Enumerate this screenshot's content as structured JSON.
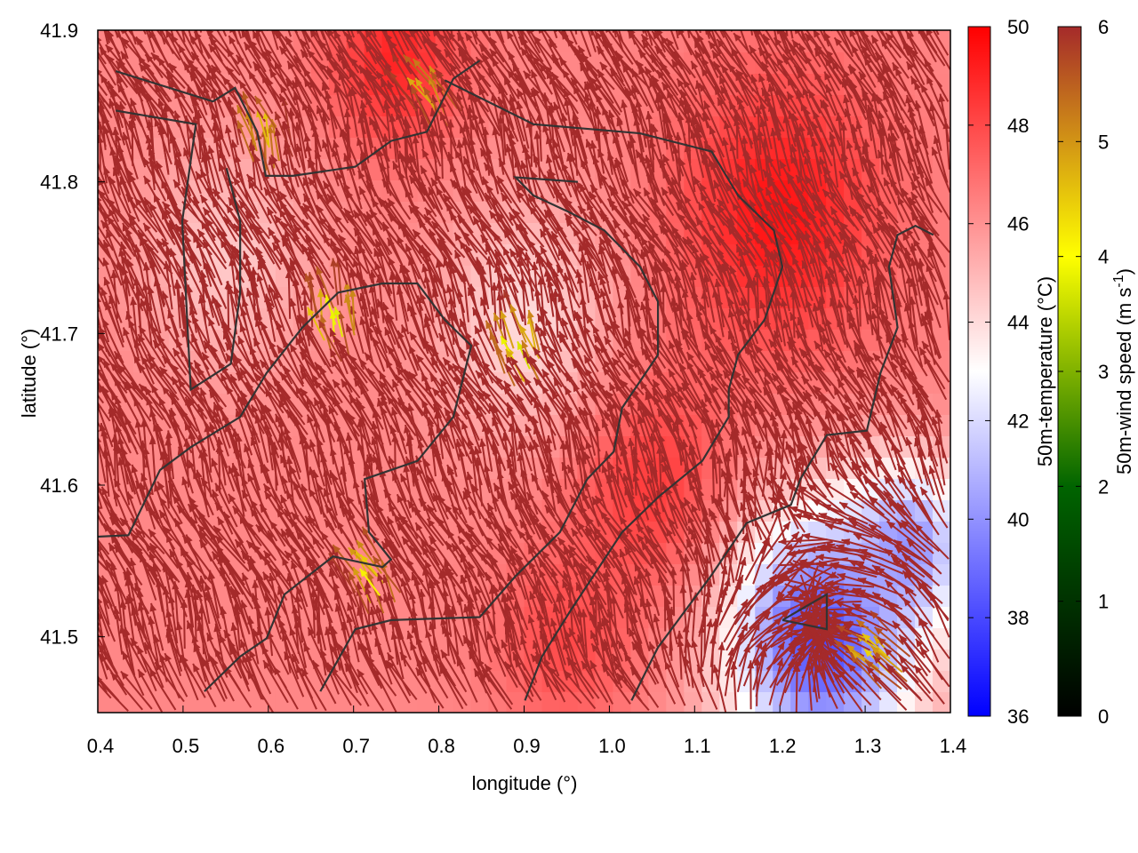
{
  "chart_data": {
    "type": "vector",
    "title": "",
    "xlabel": "longitude (°)",
    "ylabel": "latitude (°)",
    "xlim": [
      0.4,
      1.4
    ],
    "ylim": [
      41.45,
      41.9
    ],
    "xticks": [
      "0.4",
      "0.5",
      "0.6",
      "0.7",
      "0.8",
      "0.9",
      "1.0",
      "1.1",
      "1.2",
      "1.3",
      "1.4"
    ],
    "yticks": [
      "41.5",
      "41.6",
      "41.7",
      "41.8",
      "41.9"
    ],
    "colorbars": [
      {
        "label": "50m-temperature (°C)",
        "range": [
          36,
          50
        ],
        "ticks": [
          "36",
          "38",
          "40",
          "42",
          "44",
          "46",
          "48",
          "50"
        ],
        "colors": [
          "#0000ff",
          "#ffffff",
          "#ff0000"
        ]
      },
      {
        "label": "50m-wind speed (m s",
        "label_sup": "-1",
        "label_end": ")",
        "range": [
          0,
          6
        ],
        "ticks": [
          "0",
          "1",
          "2",
          "3",
          "4",
          "5",
          "6"
        ],
        "colors": [
          "#000000",
          "#006400",
          "#ffff00",
          "#a52a2a"
        ]
      }
    ],
    "temperature_background": 46.3,
    "temperature_features": [
      {
        "lon": 1.2,
        "lat": 41.78,
        "temp": 49.5,
        "radius": 0.12
      },
      {
        "lon": 1.05,
        "lat": 41.6,
        "temp": 48.5,
        "radius": 0.1
      },
      {
        "lon": 0.75,
        "lat": 41.88,
        "temp": 49,
        "radius": 0.08
      },
      {
        "lon": 0.95,
        "lat": 41.5,
        "temp": 48,
        "radius": 0.08
      },
      {
        "lon": 1.25,
        "lat": 41.5,
        "temp": 38,
        "radius": 0.11
      },
      {
        "lon": 1.35,
        "lat": 41.56,
        "temp": 40,
        "radius": 0.07
      },
      {
        "lon": 0.9,
        "lat": 41.71,
        "temp": 44,
        "radius": 0.1
      },
      {
        "lon": 0.55,
        "lat": 41.75,
        "temp": 44.5,
        "radius": 0.1
      }
    ],
    "wind": {
      "prevailing_u": -0.45,
      "prevailing_v": 1.0,
      "max_speed": 6,
      "divergence_center": {
        "lon": 1.25,
        "lat": 41.5
      },
      "low_speed_spots": [
        {
          "lon": 0.68,
          "lat": 41.7,
          "speed": 3.0
        },
        {
          "lon": 0.9,
          "lat": 41.68,
          "speed": 2.8
        },
        {
          "lon": 0.73,
          "lat": 41.53,
          "speed": 3.8
        },
        {
          "lon": 0.6,
          "lat": 41.82,
          "speed": 4.3
        },
        {
          "lon": 0.8,
          "lat": 41.85,
          "speed": 4.5
        },
        {
          "lon": 1.33,
          "lat": 41.48,
          "speed": 4.0
        }
      ]
    },
    "contours": [
      [
        [
          0.4,
          41.566
        ],
        [
          0.436,
          41.567
        ],
        [
          0.473,
          41.61
        ],
        [
          0.509,
          41.625
        ],
        [
          0.567,
          41.645
        ],
        [
          0.598,
          41.674
        ],
        [
          0.64,
          41.704
        ],
        [
          0.682,
          41.727
        ],
        [
          0.734,
          41.733
        ],
        [
          0.775,
          41.733
        ],
        [
          0.807,
          41.709
        ],
        [
          0.838,
          41.692
        ],
        [
          0.817,
          41.645
        ],
        [
          0.775,
          41.616
        ],
        [
          0.713,
          41.604
        ],
        [
          0.718,
          41.569
        ],
        [
          0.744,
          41.551
        ],
        [
          0.734,
          41.546
        ],
        [
          0.676,
          41.553
        ],
        [
          0.619,
          41.528
        ],
        [
          0.598,
          41.499
        ],
        [
          0.567,
          41.487
        ],
        [
          0.525,
          41.464
        ]
      ],
      [
        [
          0.421,
          41.873
        ],
        [
          0.535,
          41.853
        ],
        [
          0.561,
          41.862
        ],
        [
          0.587,
          41.833
        ],
        [
          0.597,
          41.804
        ],
        [
          0.629,
          41.804
        ],
        [
          0.702,
          41.81
        ],
        [
          0.744,
          41.827
        ],
        [
          0.786,
          41.833
        ],
        [
          0.817,
          41.868
        ],
        [
          0.848,
          41.88
        ]
      ],
      [
        [
          0.421,
          41.847
        ],
        [
          0.515,
          41.838
        ],
        [
          0.499,
          41.774
        ],
        [
          0.509,
          41.663
        ],
        [
          0.556,
          41.68
        ],
        [
          0.567,
          41.727
        ],
        [
          0.567,
          41.774
        ],
        [
          0.551,
          41.809
        ]
      ],
      [
        [
          0.661,
          41.464
        ],
        [
          0.702,
          41.505
        ],
        [
          0.744,
          41.511
        ],
        [
          0.848,
          41.513
        ],
        [
          0.89,
          41.54
        ],
        [
          0.942,
          41.569
        ],
        [
          0.974,
          41.604
        ],
        [
          1.005,
          41.622
        ],
        [
          1.015,
          41.651
        ],
        [
          1.057,
          41.686
        ],
        [
          1.057,
          41.721
        ],
        [
          1.036,
          41.744
        ],
        [
          0.994,
          41.768
        ],
        [
          0.953,
          41.78
        ],
        [
          0.911,
          41.791
        ],
        [
          0.89,
          41.803
        ],
        [
          0.963,
          41.8
        ]
      ],
      [
        [
          1.026,
          41.458
        ],
        [
          1.057,
          41.493
        ],
        [
          1.119,
          41.54
        ],
        [
          1.161,
          41.575
        ],
        [
          1.213,
          41.587
        ],
        [
          1.224,
          41.604
        ],
        [
          1.255,
          41.633
        ],
        [
          1.302,
          41.636
        ],
        [
          1.318,
          41.674
        ],
        [
          1.338,
          41.704
        ],
        [
          1.328,
          41.744
        ],
        [
          1.338,
          41.765
        ],
        [
          1.359,
          41.771
        ],
        [
          1.38,
          41.765
        ]
      ],
      [
        [
          0.807,
          41.867
        ],
        [
          0.911,
          41.838
        ],
        [
          1.036,
          41.832
        ],
        [
          1.12,
          41.82
        ],
        [
          1.151,
          41.791
        ],
        [
          1.193,
          41.768
        ],
        [
          1.203,
          41.744
        ],
        [
          1.182,
          41.709
        ],
        [
          1.151,
          41.686
        ],
        [
          1.14,
          41.663
        ],
        [
          1.14,
          41.645
        ],
        [
          1.109,
          41.616
        ],
        [
          1.057,
          41.592
        ],
        [
          1.015,
          41.569
        ],
        [
          0.953,
          41.516
        ],
        [
          0.921,
          41.487
        ],
        [
          0.901,
          41.458
        ]
      ],
      [
        [
          1.203,
          41.511
        ],
        [
          1.255,
          41.528
        ],
        [
          1.255,
          41.505
        ],
        [
          1.203,
          41.511
        ]
      ]
    ]
  }
}
